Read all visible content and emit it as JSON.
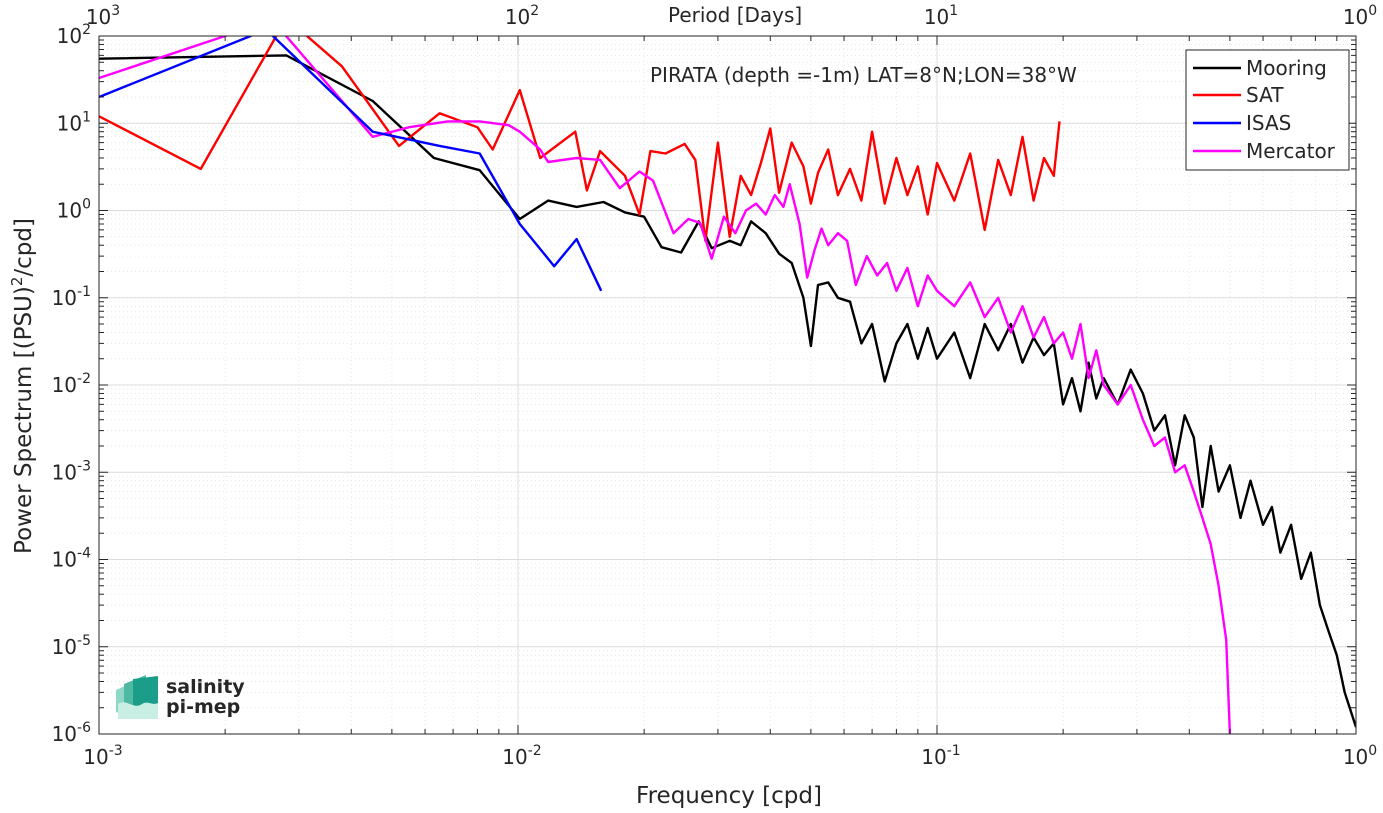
{
  "chart_data": {
    "type": "line",
    "title": "PIRATA (depth =-1m) LAT=8°N;LON=38°W",
    "xlabel": "Frequency [cpd]",
    "ylabel": "Power Spectrum [(PSU)",
    "ylabel_sup": "2",
    "ylabel_end": "/cpd]",
    "top_axis_label": "Period [Days]",
    "x_scale": "log",
    "y_scale": "log",
    "xlim": [
      0.001,
      1
    ],
    "ylim": [
      1e-06,
      100
    ],
    "grid": true,
    "legend_position": "top-right",
    "x_ticks": [
      {
        "value": 0.001,
        "base": "10",
        "exp": "-3"
      },
      {
        "value": 0.01,
        "base": "10",
        "exp": "-2"
      },
      {
        "value": 0.1,
        "base": "10",
        "exp": "-1"
      },
      {
        "value": 1,
        "base": "10",
        "exp": "0"
      }
    ],
    "top_ticks": [
      {
        "value": 0.001,
        "base": "10",
        "exp": "3"
      },
      {
        "value": 0.01,
        "base": "10",
        "exp": "2"
      },
      {
        "value": 0.1,
        "base": "10",
        "exp": "1"
      },
      {
        "value": 1,
        "base": "10",
        "exp": "0"
      }
    ],
    "y_ticks": [
      {
        "value": 100,
        "base": "10",
        "exp": "2"
      },
      {
        "value": 10,
        "base": "10",
        "exp": "1"
      },
      {
        "value": 1,
        "base": "10",
        "exp": "0"
      },
      {
        "value": 0.1,
        "base": "10",
        "exp": "-1"
      },
      {
        "value": 0.01,
        "base": "10",
        "exp": "-2"
      },
      {
        "value": 0.001,
        "base": "10",
        "exp": "-3"
      },
      {
        "value": 0.0001,
        "base": "10",
        "exp": "-4"
      },
      {
        "value": 1e-05,
        "base": "10",
        "exp": "-5"
      },
      {
        "value": 1e-06,
        "base": "10",
        "exp": "-6"
      }
    ],
    "series": [
      {
        "name": "Mooring",
        "color": "#000000",
        "points": [
          [
            0.001,
            55
          ],
          [
            0.0028,
            60
          ],
          [
            0.0045,
            18
          ],
          [
            0.0063,
            4.0
          ],
          [
            0.0081,
            2.9
          ],
          [
            0.0101,
            0.8
          ],
          [
            0.0118,
            1.3
          ],
          [
            0.0138,
            1.1
          ],
          [
            0.016,
            1.25
          ],
          [
            0.018,
            0.95
          ],
          [
            0.02,
            0.85
          ],
          [
            0.022,
            0.38
          ],
          [
            0.0245,
            0.33
          ],
          [
            0.027,
            0.75
          ],
          [
            0.029,
            0.37
          ],
          [
            0.032,
            0.45
          ],
          [
            0.034,
            0.4
          ],
          [
            0.036,
            0.75
          ],
          [
            0.039,
            0.55
          ],
          [
            0.042,
            0.32
          ],
          [
            0.045,
            0.25
          ],
          [
            0.048,
            0.1
          ],
          [
            0.05,
            0.028
          ],
          [
            0.052,
            0.14
          ],
          [
            0.055,
            0.15
          ],
          [
            0.058,
            0.1
          ],
          [
            0.062,
            0.09
          ],
          [
            0.066,
            0.03
          ],
          [
            0.07,
            0.05
          ],
          [
            0.075,
            0.011
          ],
          [
            0.08,
            0.03
          ],
          [
            0.085,
            0.05
          ],
          [
            0.09,
            0.02
          ],
          [
            0.095,
            0.045
          ],
          [
            0.1,
            0.02
          ],
          [
            0.11,
            0.04
          ],
          [
            0.12,
            0.012
          ],
          [
            0.13,
            0.05
          ],
          [
            0.14,
            0.025
          ],
          [
            0.15,
            0.05
          ],
          [
            0.16,
            0.018
          ],
          [
            0.17,
            0.035
          ],
          [
            0.18,
            0.022
          ],
          [
            0.19,
            0.03
          ],
          [
            0.2,
            0.006
          ],
          [
            0.21,
            0.012
          ],
          [
            0.22,
            0.005
          ],
          [
            0.23,
            0.018
          ],
          [
            0.24,
            0.007
          ],
          [
            0.25,
            0.012
          ],
          [
            0.27,
            0.006
          ],
          [
            0.29,
            0.015
          ],
          [
            0.31,
            0.008
          ],
          [
            0.33,
            0.003
          ],
          [
            0.35,
            0.0045
          ],
          [
            0.37,
            0.0012
          ],
          [
            0.39,
            0.0045
          ],
          [
            0.41,
            0.0025
          ],
          [
            0.43,
            0.0004
          ],
          [
            0.45,
            0.002
          ],
          [
            0.47,
            0.0006
          ],
          [
            0.5,
            0.0012
          ],
          [
            0.53,
            0.0003
          ],
          [
            0.56,
            0.0008
          ],
          [
            0.6,
            0.00025
          ],
          [
            0.63,
            0.0004
          ],
          [
            0.66,
            0.00012
          ],
          [
            0.7,
            0.00025
          ],
          [
            0.74,
            6e-05
          ],
          [
            0.78,
            0.00012
          ],
          [
            0.82,
            3e-05
          ],
          [
            0.86,
            1.5e-05
          ],
          [
            0.9,
            8e-06
          ],
          [
            0.94,
            3e-06
          ],
          [
            1.0,
            1.2e-06
          ]
        ]
      },
      {
        "name": "SAT",
        "color": "#ff0000",
        "points": [
          [
            0.001,
            12
          ],
          [
            0.00175,
            3.0
          ],
          [
            0.0028,
            160
          ],
          [
            0.0038,
            45
          ],
          [
            0.0052,
            5.5
          ],
          [
            0.0065,
            13
          ],
          [
            0.008,
            9
          ],
          [
            0.0087,
            5
          ],
          [
            0.0101,
            24
          ],
          [
            0.0113,
            4.0
          ],
          [
            0.0137,
            8
          ],
          [
            0.0146,
            1.7
          ],
          [
            0.0157,
            4.8
          ],
          [
            0.018,
            2.5
          ],
          [
            0.0195,
            0.9
          ],
          [
            0.0207,
            4.8
          ],
          [
            0.0225,
            4.5
          ],
          [
            0.025,
            5.8
          ],
          [
            0.0265,
            3.8
          ],
          [
            0.028,
            0.45
          ],
          [
            0.03,
            6
          ],
          [
            0.032,
            0.5
          ],
          [
            0.034,
            2.5
          ],
          [
            0.036,
            1.5
          ],
          [
            0.038,
            3.5
          ],
          [
            0.04,
            8.7
          ],
          [
            0.042,
            1.6
          ],
          [
            0.045,
            6
          ],
          [
            0.048,
            3.2
          ],
          [
            0.05,
            1.2
          ],
          [
            0.052,
            2.7
          ],
          [
            0.055,
            5
          ],
          [
            0.058,
            1.5
          ],
          [
            0.062,
            3
          ],
          [
            0.066,
            1.3
          ],
          [
            0.07,
            8
          ],
          [
            0.075,
            1.2
          ],
          [
            0.08,
            4
          ],
          [
            0.085,
            1.5
          ],
          [
            0.09,
            3.2
          ],
          [
            0.095,
            0.9
          ],
          [
            0.1,
            3.5
          ],
          [
            0.11,
            1.3
          ],
          [
            0.12,
            4.5
          ],
          [
            0.13,
            0.6
          ],
          [
            0.14,
            3.8
          ],
          [
            0.15,
            1.5
          ],
          [
            0.16,
            7
          ],
          [
            0.17,
            1.3
          ],
          [
            0.18,
            4
          ],
          [
            0.19,
            2.5
          ],
          [
            0.196,
            10.5
          ]
        ]
      },
      {
        "name": "ISAS",
        "color": "#0000ff",
        "points": [
          [
            0.001,
            20
          ],
          [
            0.0023,
            100
          ],
          [
            0.0025,
            120
          ],
          [
            0.0045,
            8
          ],
          [
            0.0065,
            5.5
          ],
          [
            0.0081,
            4.5
          ],
          [
            0.0101,
            0.7
          ],
          [
            0.0122,
            0.23
          ],
          [
            0.0138,
            0.47
          ],
          [
            0.0158,
            0.12
          ]
        ]
      },
      {
        "name": "Mercator",
        "color": "#ff00ff",
        "points": [
          [
            0.001,
            33
          ],
          [
            0.002,
            100
          ],
          [
            0.0026,
            150
          ],
          [
            0.0045,
            7
          ],
          [
            0.0055,
            9
          ],
          [
            0.0068,
            10.5
          ],
          [
            0.0081,
            10.5
          ],
          [
            0.0095,
            9.5
          ],
          [
            0.0101,
            8
          ],
          [
            0.0113,
            5
          ],
          [
            0.0118,
            3.6
          ],
          [
            0.0138,
            4.0
          ],
          [
            0.0157,
            3.8
          ],
          [
            0.0175,
            1.8
          ],
          [
            0.0195,
            2.8
          ],
          [
            0.021,
            2.2
          ],
          [
            0.0235,
            0.55
          ],
          [
            0.0255,
            0.8
          ],
          [
            0.0272,
            0.72
          ],
          [
            0.029,
            0.28
          ],
          [
            0.031,
            0.85
          ],
          [
            0.033,
            0.55
          ],
          [
            0.035,
            1.0
          ],
          [
            0.037,
            1.2
          ],
          [
            0.039,
            0.9
          ],
          [
            0.041,
            1.5
          ],
          [
            0.043,
            1.1
          ],
          [
            0.0445,
            2.0
          ],
          [
            0.047,
            0.7
          ],
          [
            0.049,
            0.17
          ],
          [
            0.051,
            0.35
          ],
          [
            0.053,
            0.62
          ],
          [
            0.055,
            0.4
          ],
          [
            0.058,
            0.55
          ],
          [
            0.061,
            0.45
          ],
          [
            0.064,
            0.14
          ],
          [
            0.068,
            0.3
          ],
          [
            0.072,
            0.18
          ],
          [
            0.076,
            0.25
          ],
          [
            0.08,
            0.12
          ],
          [
            0.085,
            0.22
          ],
          [
            0.09,
            0.08
          ],
          [
            0.095,
            0.18
          ],
          [
            0.1,
            0.12
          ],
          [
            0.11,
            0.08
          ],
          [
            0.12,
            0.15
          ],
          [
            0.13,
            0.06
          ],
          [
            0.14,
            0.1
          ],
          [
            0.15,
            0.04
          ],
          [
            0.16,
            0.08
          ],
          [
            0.17,
            0.035
          ],
          [
            0.18,
            0.06
          ],
          [
            0.19,
            0.03
          ],
          [
            0.2,
            0.04
          ],
          [
            0.21,
            0.02
          ],
          [
            0.22,
            0.05
          ],
          [
            0.23,
            0.012
          ],
          [
            0.24,
            0.025
          ],
          [
            0.25,
            0.01
          ],
          [
            0.27,
            0.006
          ],
          [
            0.29,
            0.01
          ],
          [
            0.31,
            0.004
          ],
          [
            0.33,
            0.002
          ],
          [
            0.35,
            0.0025
          ],
          [
            0.37,
            0.001
          ],
          [
            0.39,
            0.0012
          ],
          [
            0.41,
            0.0006
          ],
          [
            0.43,
            0.0003
          ],
          [
            0.45,
            0.00015
          ],
          [
            0.47,
            5e-05
          ],
          [
            0.49,
            1.2e-05
          ],
          [
            0.5,
            1e-06
          ]
        ]
      }
    ]
  },
  "branding": {
    "line1": "salinity",
    "line2": "pi-mep",
    "color": "#1a9e8a"
  }
}
